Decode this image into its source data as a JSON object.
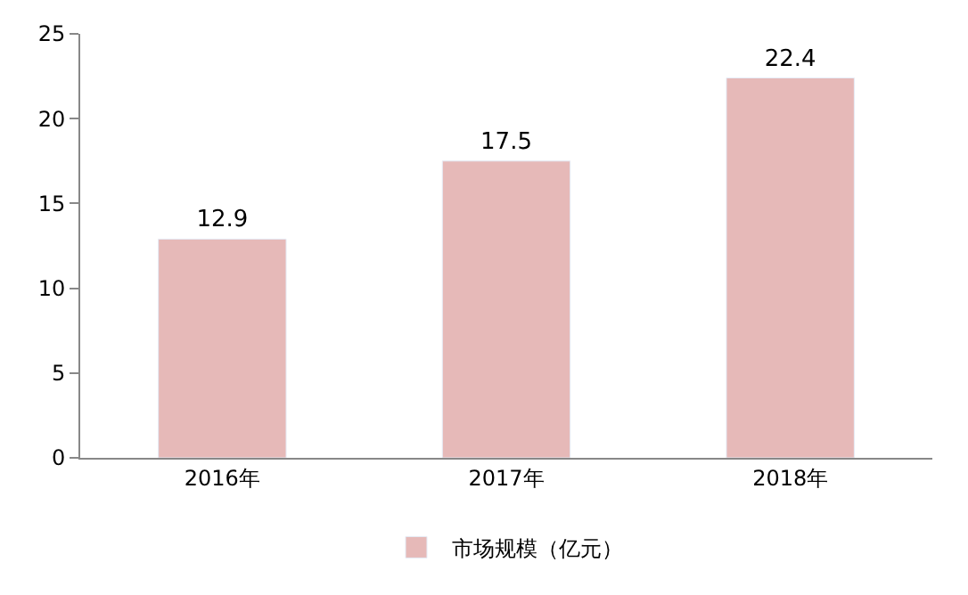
{
  "chart_data": {
    "type": "bar",
    "categories": [
      "2016年",
      "2017年",
      "2018年"
    ],
    "series": [
      {
        "name": "市场规模（亿元）",
        "color": "#e6b9b8",
        "values": [
          12.9,
          17.5,
          22.4
        ]
      }
    ],
    "ylim": [
      0,
      25
    ],
    "yticks": [
      0,
      5,
      10,
      15,
      20,
      25
    ],
    "legend": "bottom",
    "data_labels": true
  }
}
